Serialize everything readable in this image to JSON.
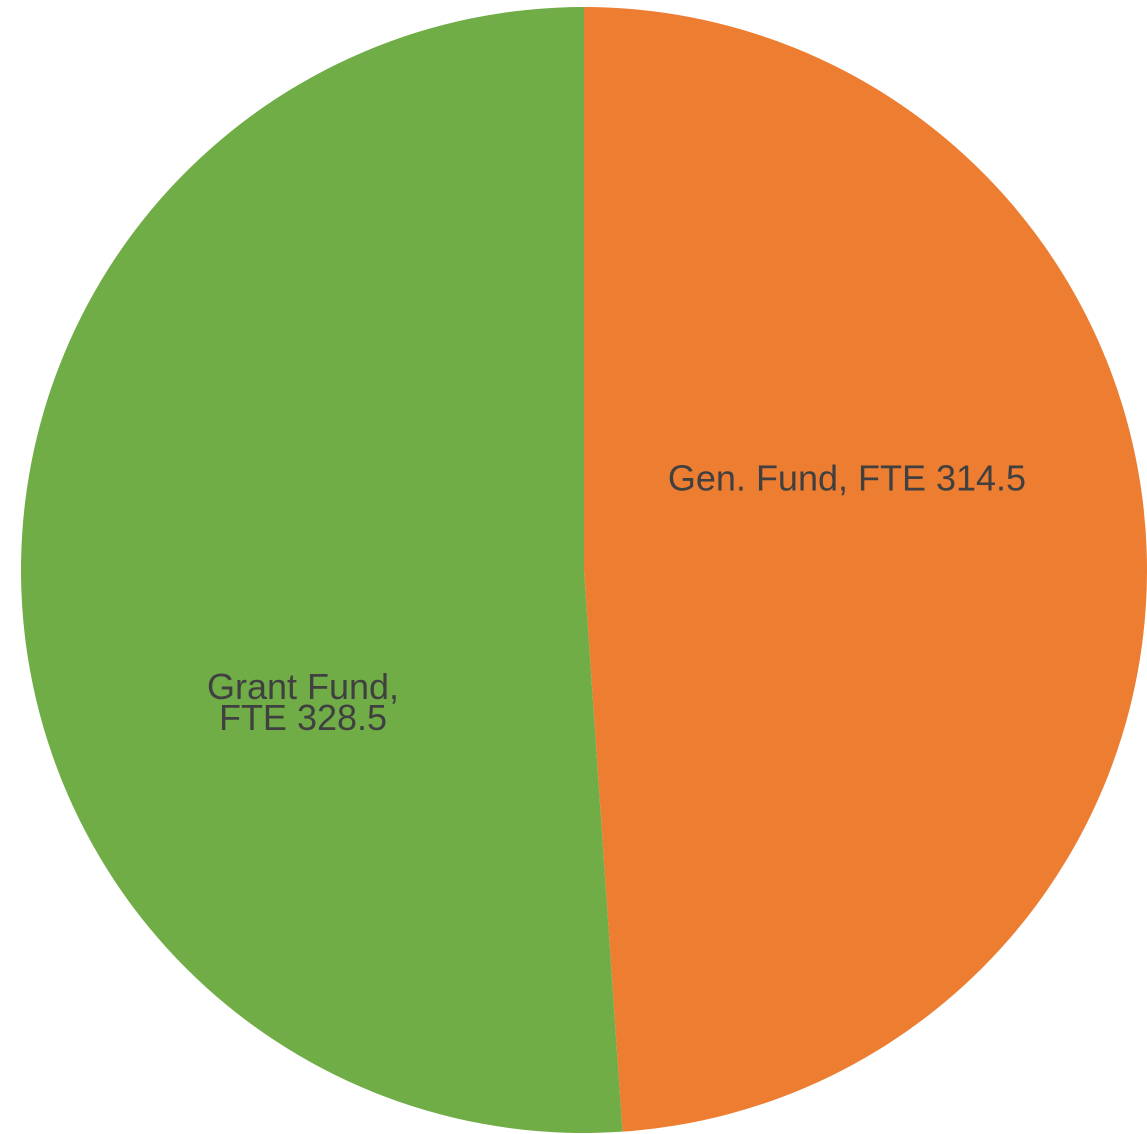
{
  "chart_data": {
    "type": "pie",
    "values": [
      314.5,
      328.5
    ],
    "value_labels": [
      "Gen. Fund, FTE 314.5",
      "Grant Fund, FTE 328.5"
    ],
    "colors": [
      "#ed7d31",
      "#70ad47"
    ]
  }
}
